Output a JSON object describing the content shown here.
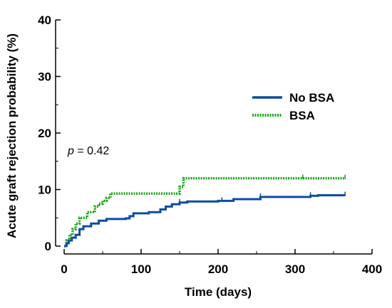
{
  "chart_data": {
    "type": "line",
    "step": true,
    "xlabel": "Time (days)",
    "ylabel": "Acute graft rejection probability (%)",
    "xlim": [
      0,
      400
    ],
    "ylim": [
      0,
      40
    ],
    "xticks": [
      0,
      100,
      200,
      300,
      400
    ],
    "yticks": [
      0,
      10,
      20,
      30,
      40
    ],
    "legend_position": "right",
    "annotation": {
      "italic_part": "p",
      "rest": " = 0.42"
    },
    "series": [
      {
        "name": "No BSA",
        "color": "#0d4d9c",
        "style": "solid",
        "points": [
          [
            0,
            0
          ],
          [
            3,
            0.5
          ],
          [
            6,
            1
          ],
          [
            10,
            1.5
          ],
          [
            15,
            2
          ],
          [
            20,
            3
          ],
          [
            25,
            3.5
          ],
          [
            35,
            4
          ],
          [
            45,
            4.5
          ],
          [
            55,
            4.8
          ],
          [
            62,
            4.8
          ],
          [
            80,
            4.9
          ],
          [
            85,
            5.3
          ],
          [
            90,
            5.8
          ],
          [
            110,
            6
          ],
          [
            125,
            6.5
          ],
          [
            132,
            7
          ],
          [
            140,
            7.4
          ],
          [
            150,
            7.7
          ],
          [
            160,
            7.9
          ],
          [
            200,
            8
          ],
          [
            220,
            8.3
          ],
          [
            255,
            8.7
          ],
          [
            320,
            8.9
          ],
          [
            330,
            9
          ],
          [
            365,
            9
          ]
        ],
        "censor": [
          150,
          205,
          255,
          320,
          365
        ]
      },
      {
        "name": "BSA",
        "color": "#1aa31a",
        "style": "dotted",
        "points": [
          [
            0,
            0
          ],
          [
            3,
            1
          ],
          [
            7,
            2
          ],
          [
            11,
            3
          ],
          [
            15,
            4
          ],
          [
            20,
            5
          ],
          [
            30,
            6
          ],
          [
            40,
            7
          ],
          [
            45,
            7.5
          ],
          [
            50,
            8
          ],
          [
            55,
            8.5
          ],
          [
            60,
            9.3
          ],
          [
            145,
            9.3
          ],
          [
            150,
            10.5
          ],
          [
            155,
            12
          ],
          [
            365,
            12
          ]
        ],
        "censor": [
          310,
          365
        ]
      }
    ]
  }
}
